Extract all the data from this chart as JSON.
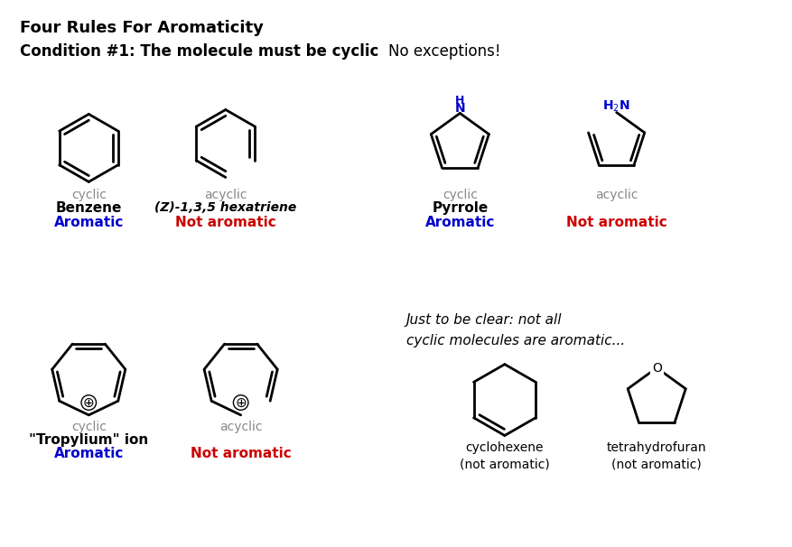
{
  "title": "Four Rules For Aromaticity",
  "condition": "Condition #1: The molecule must be cyclic",
  "no_exceptions": "No exceptions!",
  "bg_color": "#ffffff",
  "text_color": "#000000",
  "gray_color": "#888888",
  "blue_color": "#0000cc",
  "red_color": "#cc0000"
}
